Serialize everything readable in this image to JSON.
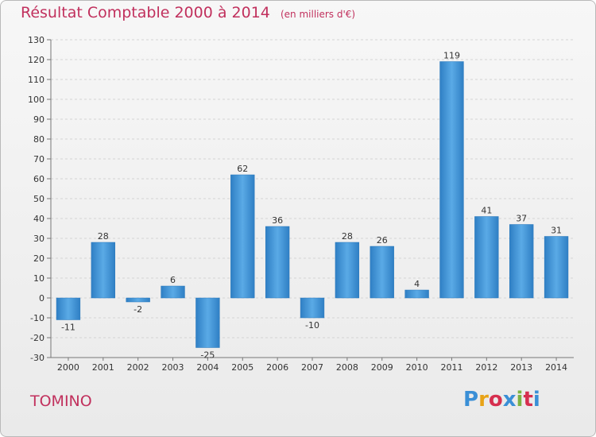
{
  "chart_data": {
    "type": "bar",
    "title": "Résultat Comptable 2000 à 2014",
    "subtitle": "(en milliers d'€)",
    "categories": [
      "2000",
      "2001",
      "2002",
      "2003",
      "2004",
      "2005",
      "2006",
      "2007",
      "2008",
      "2009",
      "2010",
      "2011",
      "2012",
      "2013",
      "2014"
    ],
    "values": [
      -11,
      28,
      -2,
      6,
      -25,
      62,
      36,
      -10,
      28,
      26,
      4,
      119,
      41,
      37,
      31
    ],
    "data_labels": [
      "-11",
      "28",
      "-2",
      "6",
      "-25",
      "62",
      "36",
      "-10",
      "28",
      "26",
      "4",
      "119",
      "41",
      "37",
      "31"
    ],
    "yticks": [
      "-30",
      "-20",
      "-10",
      "0",
      "10",
      "20",
      "30",
      "40",
      "50",
      "60",
      "70",
      "80",
      "90",
      "100",
      "110",
      "120",
      "130"
    ],
    "ylim": [
      -30,
      130
    ],
    "grid": true,
    "bar_color": "#3a8fd6"
  },
  "footer": {
    "commune": "TOMINO",
    "logo": "Proxiti",
    "logo_colors": [
      "#3a8fd6",
      "#e8a317",
      "#d62f4f",
      "#3a8fd6",
      "#7cb342",
      "#d62f4f",
      "#3a8fd6"
    ]
  }
}
